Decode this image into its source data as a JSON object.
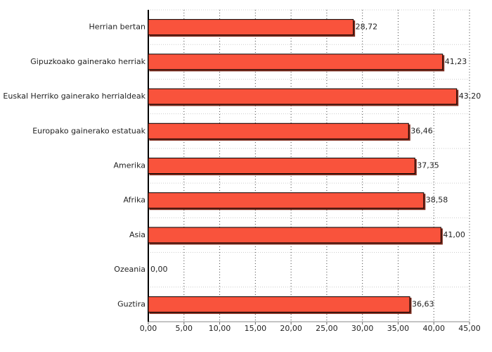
{
  "chart_data": {
    "type": "bar",
    "orientation": "horizontal",
    "categories": [
      "Herrian bertan",
      "Gipuzkoako gainerako herriak",
      "Euskal Herriko gainerako herrialdeak",
      "Europako gainerako estatuak",
      "Amerika",
      "Afrika",
      "Asia",
      "Ozeania",
      "Guztira"
    ],
    "values": [
      28.72,
      41.23,
      43.2,
      36.46,
      37.35,
      38.58,
      41.0,
      0.0,
      36.63
    ],
    "value_labels": [
      "28,72",
      "41,23",
      "43,20",
      "36,46",
      "37,35",
      "38,58",
      "41,00",
      "0,00",
      "36,63"
    ],
    "color": "#f9533c",
    "xlim": [
      0,
      45
    ],
    "xticks": [
      {
        "value": 0,
        "label": "0,00"
      },
      {
        "value": 5,
        "label": "5,00"
      },
      {
        "value": 10,
        "label": "10,00"
      },
      {
        "value": 15,
        "label": "15,00"
      },
      {
        "value": 20,
        "label": "20,00"
      },
      {
        "value": 25,
        "label": "25,00"
      },
      {
        "value": 30,
        "label": "30,00"
      },
      {
        "value": 35,
        "label": "35,00"
      },
      {
        "value": 40,
        "label": "40,00"
      },
      {
        "value": 45,
        "label": "45,00"
      }
    ],
    "grid": true
  }
}
